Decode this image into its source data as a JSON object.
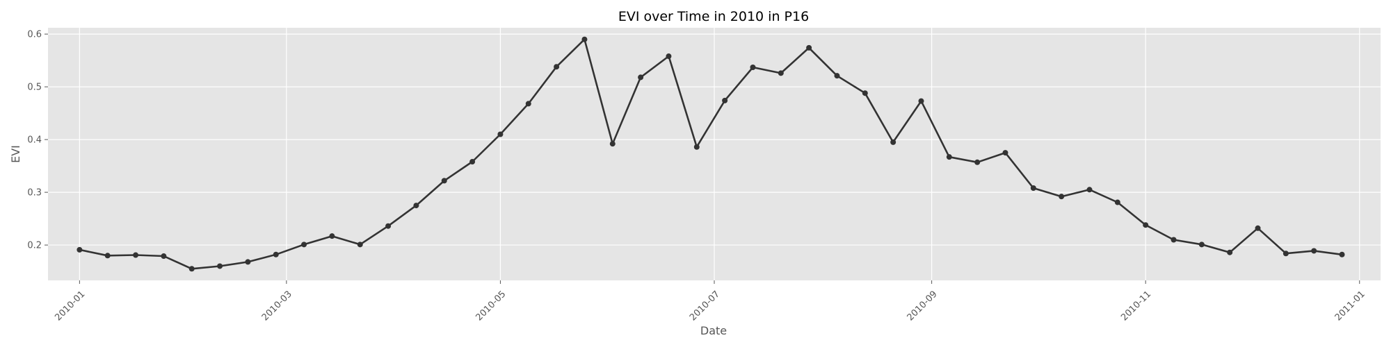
{
  "chart_data": {
    "type": "line",
    "title": "EVI over Time in 2010 in P16",
    "xlabel": "Date",
    "ylabel": "EVI",
    "grid": true,
    "legend": "none",
    "xlim": [
      "2009-12-23",
      "2011-01-07"
    ],
    "ylim": [
      0.133,
      0.612
    ],
    "x_ticks": [
      "2010-01",
      "2010-03",
      "2010-05",
      "2010-07",
      "2010-09",
      "2010-11",
      "2011-01"
    ],
    "x_tick_dates": [
      "2010-01-01",
      "2010-03-01",
      "2010-05-01",
      "2010-07-01",
      "2010-09-01",
      "2010-11-01",
      "2011-01-01"
    ],
    "y_ticks": [
      0.2,
      0.3,
      0.4,
      0.5,
      0.6
    ],
    "y_tick_labels": [
      "0.2",
      "0.3",
      "0.4",
      "0.5",
      "0.6"
    ],
    "colors": {
      "plot_background": "#e5e5e5",
      "series": "#333333",
      "grid": "#ffffff"
    },
    "series": [
      {
        "x": [
          "2010-01-01",
          "2010-01-09",
          "2010-01-17",
          "2010-01-25",
          "2010-02-02",
          "2010-02-10",
          "2010-02-18",
          "2010-02-26",
          "2010-03-06",
          "2010-03-14",
          "2010-03-22",
          "2010-03-30",
          "2010-04-07",
          "2010-04-15",
          "2010-04-23",
          "2010-05-01",
          "2010-05-09",
          "2010-05-17",
          "2010-05-25",
          "2010-06-02",
          "2010-06-10",
          "2010-06-18",
          "2010-06-26",
          "2010-07-04",
          "2010-07-12",
          "2010-07-20",
          "2010-07-28",
          "2010-08-05",
          "2010-08-13",
          "2010-08-21",
          "2010-08-29",
          "2010-09-06",
          "2010-09-14",
          "2010-09-22",
          "2010-09-30",
          "2010-10-08",
          "2010-10-16",
          "2010-10-24",
          "2010-11-01",
          "2010-11-09",
          "2010-11-17",
          "2010-11-25",
          "2010-12-03",
          "2010-12-11",
          "2010-12-19",
          "2010-12-27"
        ],
        "y": [
          0.191,
          0.18,
          0.181,
          0.179,
          0.155,
          0.16,
          0.168,
          0.182,
          0.201,
          0.217,
          0.201,
          0.236,
          0.275,
          0.322,
          0.358,
          0.41,
          0.468,
          0.538,
          0.59,
          0.392,
          0.518,
          0.558,
          0.386,
          0.474,
          0.537,
          0.526,
          0.574,
          0.521,
          0.488,
          0.395,
          0.473,
          0.367,
          0.357,
          0.375,
          0.308,
          0.292,
          0.305,
          0.281,
          0.238,
          0.21,
          0.201,
          0.186,
          0.232,
          0.184,
          0.189,
          0.182
        ]
      }
    ]
  }
}
